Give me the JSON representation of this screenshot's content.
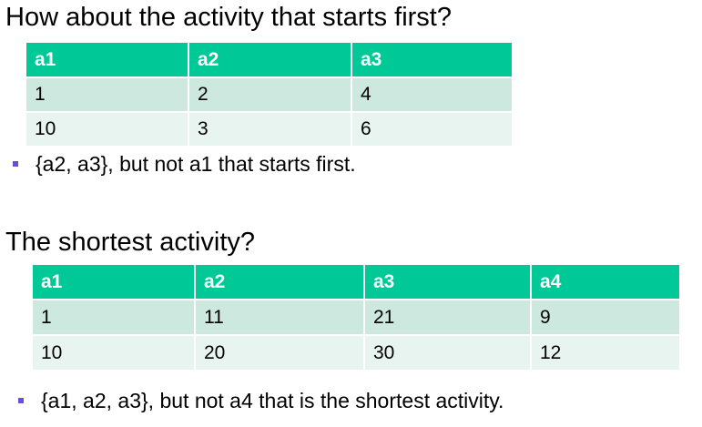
{
  "section1": {
    "heading": "How about the activity that starts first?",
    "table": {
      "headers": [
        "a1",
        "a2",
        "a3"
      ],
      "rows": [
        [
          "1",
          "2",
          "4"
        ],
        [
          "10",
          "3",
          "6"
        ]
      ]
    },
    "bullet": "{a2, a3}, but not a1 that starts first."
  },
  "section2": {
    "heading": "The shortest activity?",
    "table": {
      "headers": [
        "a1",
        "a2",
        "a3",
        "a4"
      ],
      "rows": [
        [
          "1",
          "11",
          "21",
          "9"
        ],
        [
          "10",
          "20",
          "30",
          "12"
        ]
      ]
    },
    "bullet": "{a1, a2, a3}, but not a4 that is the shortest activity."
  },
  "colors": {
    "header_bg": "#00c896",
    "row_odd_bg": "#cde9df",
    "row_even_bg": "#e8f4ef",
    "bullet_marker": "#6b4ddb"
  }
}
